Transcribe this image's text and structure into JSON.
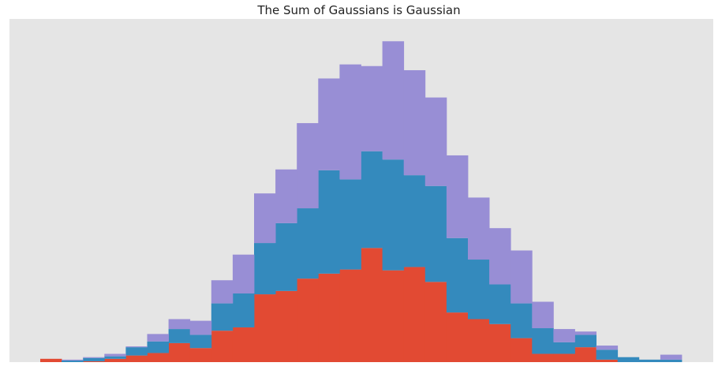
{
  "chart_data": {
    "type": "bar",
    "stacked": true,
    "title": "The Sum of Gaussians is Gaussian",
    "xlabel": "",
    "ylabel": "",
    "grid": false,
    "legend": "none",
    "ylim": [
      0,
      415
    ],
    "bin_count": 31,
    "series": [
      {
        "color": "#e24a33",
        "values": [
          4,
          0,
          1,
          4,
          8,
          11,
          23,
          17,
          38,
          42,
          82,
          86,
          101,
          107,
          112,
          138,
          111,
          115,
          97,
          60,
          52,
          46,
          29,
          10,
          10,
          18,
          3,
          0,
          0,
          0,
          0
        ]
      },
      {
        "color": "#348abd",
        "values": [
          0,
          2,
          4,
          3,
          10,
          14,
          17,
          16,
          33,
          41,
          62,
          82,
          85,
          125,
          109,
          117,
          134,
          111,
          116,
          90,
          72,
          48,
          42,
          31,
          14,
          15,
          12,
          6,
          3,
          3,
          0
        ]
      },
      {
        "color": "#988ed5",
        "values": [
          0,
          1,
          1,
          3,
          1,
          9,
          12,
          17,
          28,
          47,
          60,
          65,
          103,
          111,
          139,
          103,
          143,
          127,
          107,
          100,
          75,
          68,
          64,
          32,
          16,
          4,
          5,
          0,
          0,
          6,
          0
        ]
      }
    ]
  }
}
